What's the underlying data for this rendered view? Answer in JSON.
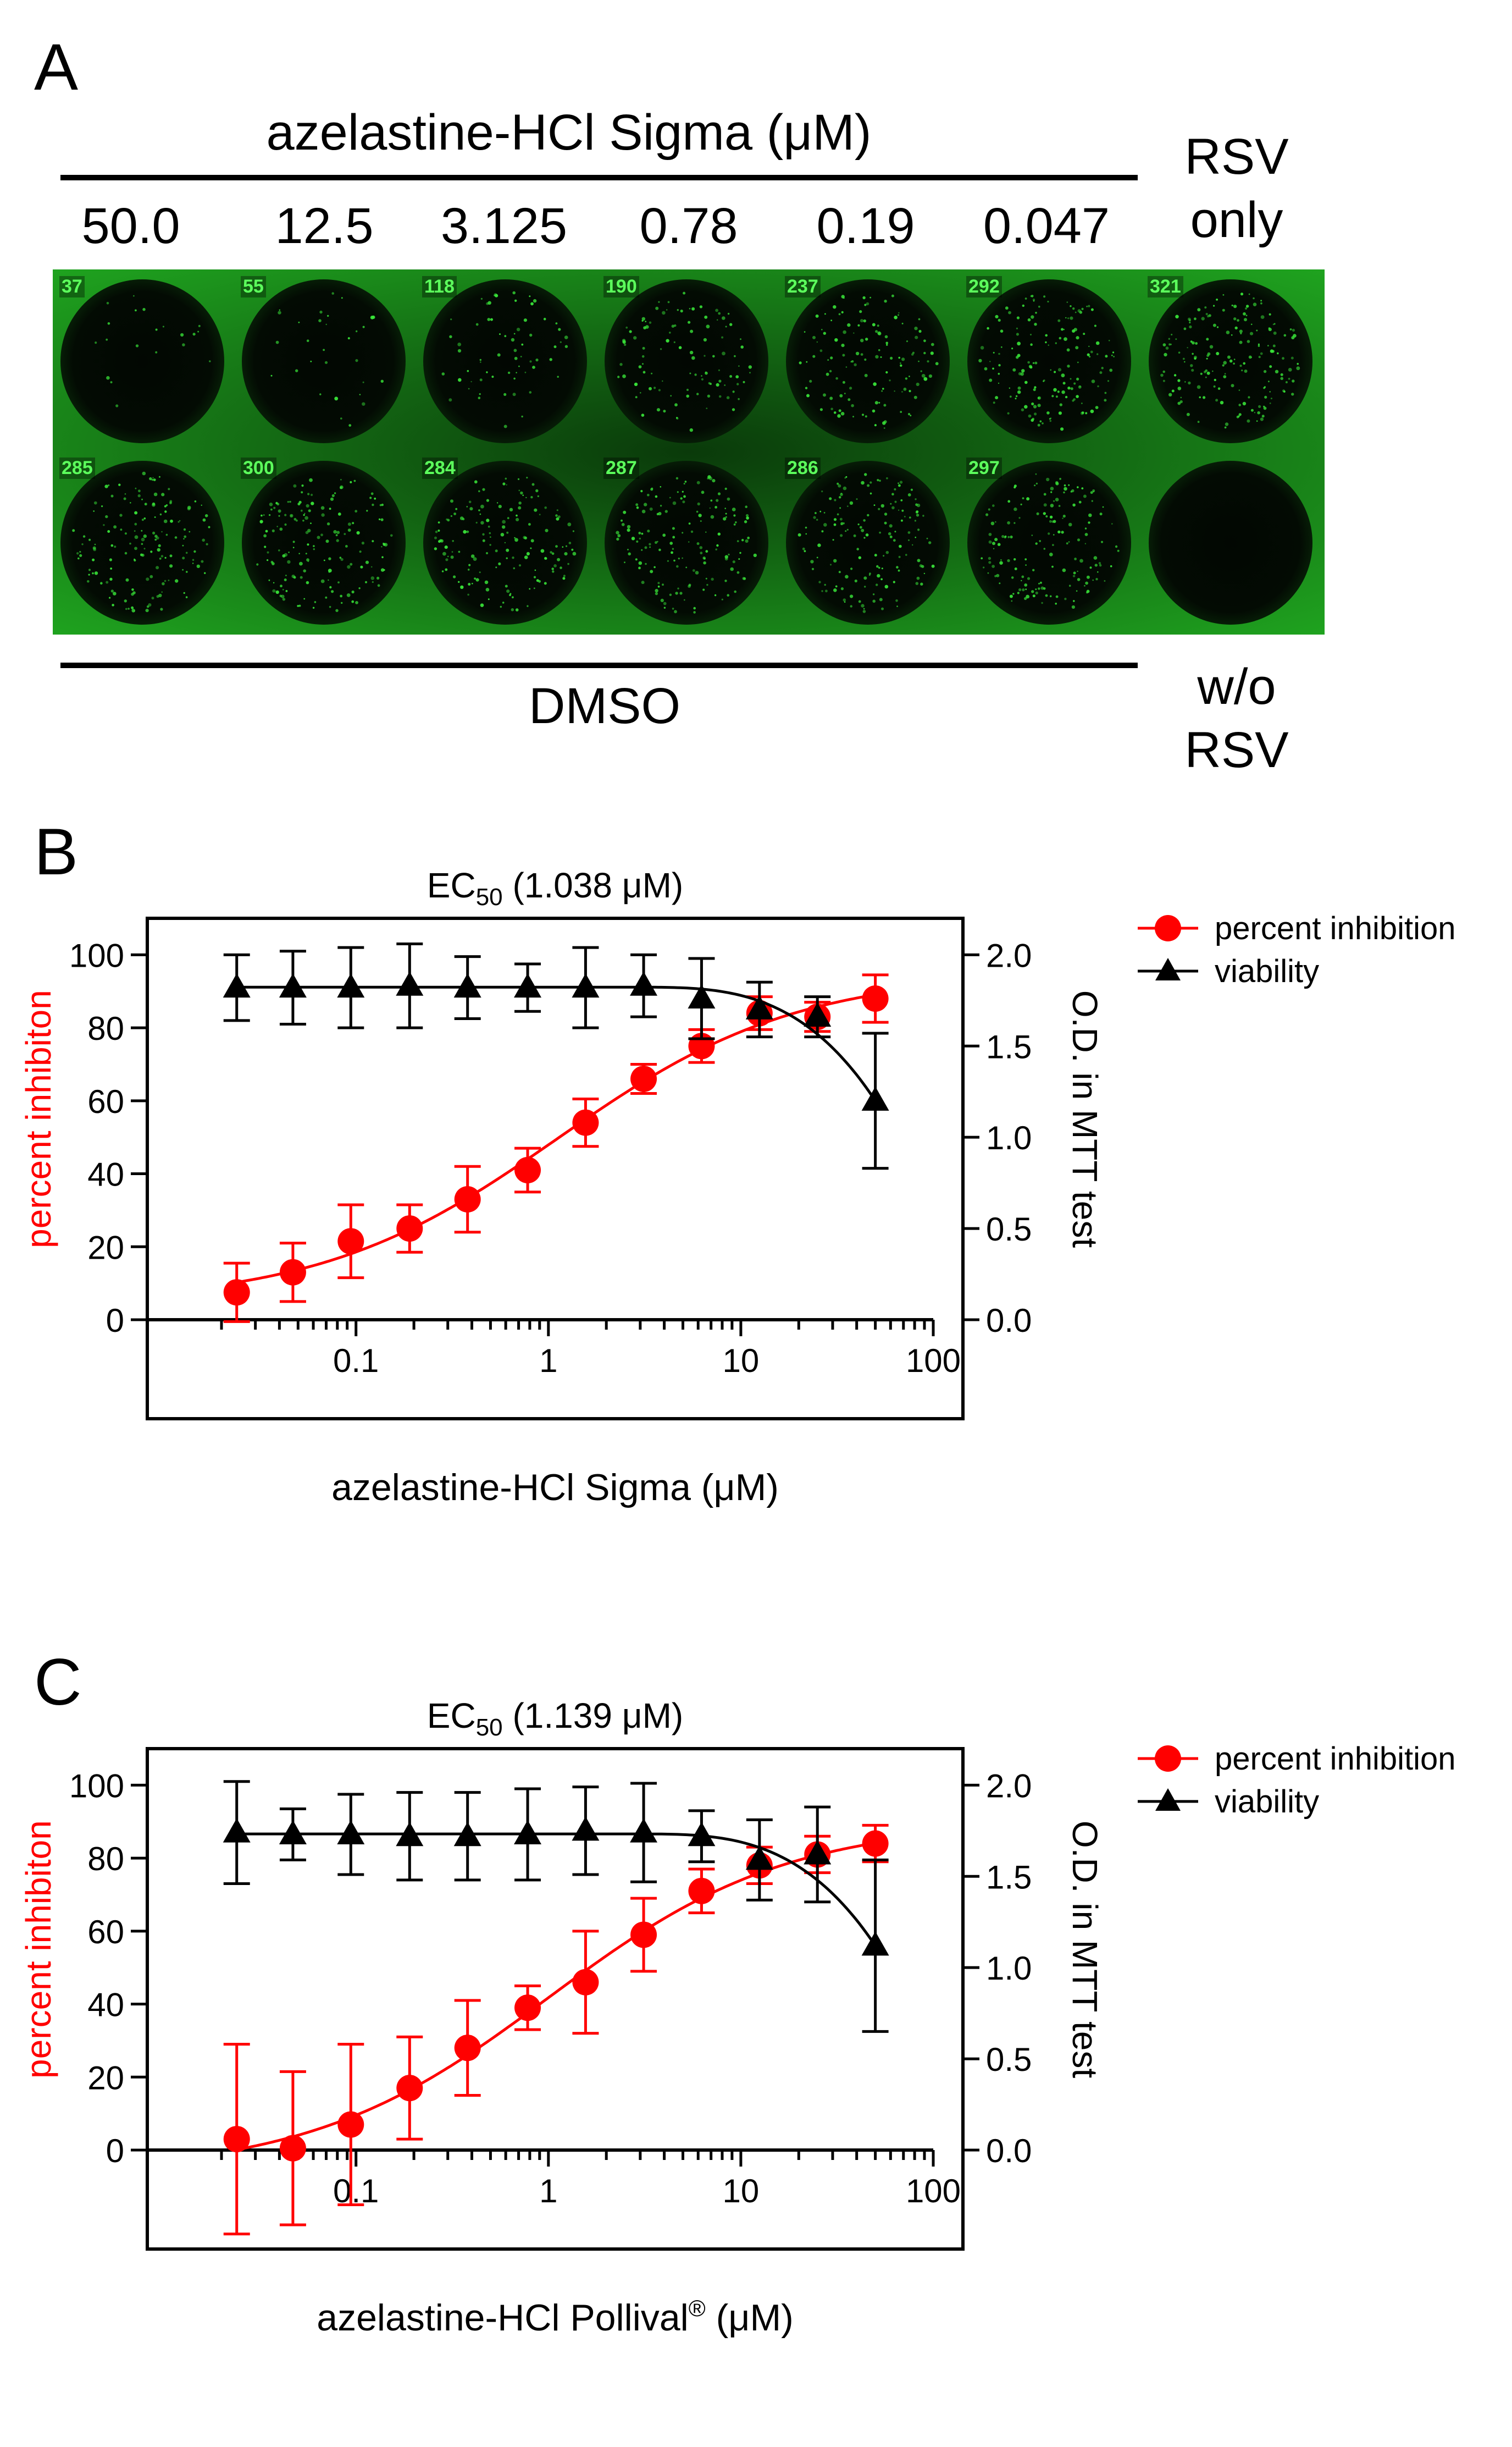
{
  "panel_a": {
    "letter": "A",
    "title_prefix": "azelastine-HCl Sigma (",
    "title_mu": "μ",
    "title_suffix": "M)",
    "concentrations": [
      "50.0",
      "12.5",
      "3.125",
      "0.78",
      "0.19",
      "0.047"
    ],
    "rsv_only_label": [
      "RSV",
      "only"
    ],
    "dmso_label": "DMSO",
    "without_rsv_label": [
      "w/o",
      "RSV"
    ],
    "well_counts_top": [
      "37",
      "55",
      "118",
      "190",
      "237",
      "292",
      "321"
    ],
    "well_counts_bottom": [
      "285",
      "300",
      "284",
      "287",
      "286",
      "297",
      ""
    ],
    "plate_color": "#1fa31f",
    "spot_color": "#39e639"
  },
  "chart_data": [
    {
      "type": "scatter",
      "panel_letter": "B",
      "title_prefix": "EC",
      "title_sub": "50",
      "title_value": "(1.038 μM)",
      "xlabel_prefix": "azelastine-HCl Sigma (",
      "xlabel_mu": "μ",
      "xlabel_suffix": "M)",
      "xlabel_sup": "",
      "ylabel_left": "percent inhibiton",
      "ylabel_right": "O.D. in MTT test",
      "x_scale": "log",
      "xlim": [
        0.02,
        100
      ],
      "x_ticks": [
        0.1,
        1,
        10,
        100
      ],
      "x_tick_labels": [
        "0.1",
        "1",
        "10",
        "100"
      ],
      "ylim_left": [
        0,
        110
      ],
      "y_ticks_left": [
        0,
        20,
        40,
        60,
        80,
        100
      ],
      "ylim_right": [
        0,
        2.2
      ],
      "y_ticks_right": [
        0.0,
        0.5,
        1.0,
        1.5,
        2.0
      ],
      "y_tick_labels_right": [
        "0.0",
        "0.5",
        "1.0",
        "1.5",
        "2.0"
      ],
      "legend_position": "right",
      "series": [
        {
          "name": "percent inhibition",
          "color": "#ff0000",
          "marker": "circle",
          "axis": "left",
          "x": [
            0.024,
            0.047,
            0.094,
            0.19,
            0.38,
            0.78,
            1.56,
            3.125,
            6.25,
            12.5,
            25,
            50
          ],
          "y": [
            7.5,
            13,
            21.5,
            25,
            33,
            41,
            54,
            66,
            75,
            84,
            83,
            88
          ],
          "err": [
            8,
            8,
            10,
            6.5,
            9,
            6,
            6.5,
            4,
            4.5,
            4.5,
            4,
            6.5
          ]
        },
        {
          "name": "viability",
          "color": "#000000",
          "marker": "triangle",
          "axis": "right",
          "x": [
            0.024,
            0.047,
            0.094,
            0.19,
            0.38,
            0.78,
            1.56,
            3.125,
            6.25,
            12.5,
            25,
            50
          ],
          "y": [
            1.82,
            1.82,
            1.82,
            1.83,
            1.82,
            1.82,
            1.82,
            1.83,
            1.76,
            1.7,
            1.66,
            1.2
          ],
          "err": [
            0.18,
            0.2,
            0.22,
            0.23,
            0.17,
            0.13,
            0.22,
            0.17,
            0.22,
            0.15,
            0.11,
            0.37
          ]
        }
      ]
    },
    {
      "type": "scatter",
      "panel_letter": "C",
      "title_prefix": "EC",
      "title_sub": "50",
      "title_value": "(1.139 μM)",
      "xlabel_prefix": "azelastine-HCl Pollival",
      "xlabel_mu": "μ",
      "xlabel_suffix": "M)",
      "xlabel_sup": "®",
      "xlabel_mid": " (",
      "ylabel_left": "percent inhibiton",
      "ylabel_right": "O.D. in MTT test",
      "x_scale": "log",
      "xlim": [
        0.02,
        100
      ],
      "x_ticks": [
        0.1,
        1,
        10,
        100
      ],
      "x_tick_labels": [
        "0.1",
        "1",
        "10",
        "100"
      ],
      "ylim_left": [
        0,
        110
      ],
      "y_ticks_left": [
        0,
        20,
        40,
        60,
        80,
        100
      ],
      "ylim_right": [
        0,
        2.2
      ],
      "y_ticks_right": [
        0.0,
        0.5,
        1.0,
        1.5,
        2.0
      ],
      "y_tick_labels_right": [
        "0.0",
        "0.5",
        "1.0",
        "1.5",
        "2.0"
      ],
      "legend_position": "right",
      "series": [
        {
          "name": "percent inhibition",
          "color": "#ff0000",
          "marker": "circle",
          "axis": "left",
          "x": [
            0.024,
            0.047,
            0.094,
            0.19,
            0.38,
            0.78,
            1.56,
            3.125,
            6.25,
            12.5,
            25,
            50
          ],
          "y": [
            3,
            0.5,
            7,
            17,
            28,
            39,
            46,
            59,
            71,
            78,
            81,
            84
          ],
          "err": [
            26,
            21,
            22,
            14,
            13,
            6,
            14,
            10,
            6,
            5,
            5,
            5
          ]
        },
        {
          "name": "viability",
          "color": "#000000",
          "marker": "triangle",
          "axis": "right",
          "x": [
            0.024,
            0.047,
            0.094,
            0.19,
            0.38,
            0.78,
            1.56,
            3.125,
            6.25,
            12.5,
            25,
            50
          ],
          "y": [
            1.74,
            1.73,
            1.73,
            1.72,
            1.72,
            1.73,
            1.75,
            1.74,
            1.72,
            1.59,
            1.62,
            1.12
          ],
          "err": [
            0.28,
            0.14,
            0.22,
            0.24,
            0.24,
            0.25,
            0.24,
            0.27,
            0.14,
            0.22,
            0.26,
            0.47
          ]
        }
      ]
    }
  ]
}
